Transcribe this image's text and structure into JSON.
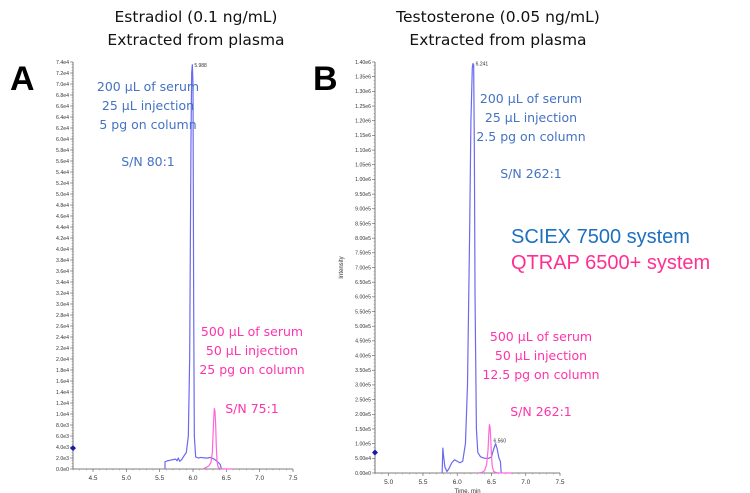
{
  "chart_data": [
    {
      "type": "line",
      "panel": "A",
      "title": [
        "Estradiol (0.1 ng/mL)",
        "Extracted from plasma"
      ],
      "xlabel": "",
      "ylabel": "",
      "xlim": [
        4.2,
        7.5
      ],
      "ylim": [
        0,
        74000
      ],
      "xticks": [
        "4.5",
        "5.0",
        "5.5",
        "6.0",
        "6.5",
        "7.0",
        "7.5"
      ],
      "xtick_values": [
        4.5,
        5.0,
        5.5,
        6.0,
        6.5,
        7.0,
        7.5
      ],
      "yticks": [
        "0.0e0",
        "2.0e3",
        "4.0e3",
        "6.0e3",
        "8.0e3",
        "1.0e4",
        "1.2e4",
        "1.4e4",
        "1.6e4",
        "1.8e4",
        "2.0e4",
        "2.2e4",
        "2.4e4",
        "2.6e4",
        "2.8e4",
        "3.0e4",
        "3.2e4",
        "3.4e4",
        "3.6e4",
        "3.8e4",
        "4.0e4",
        "4.2e4",
        "4.4e4",
        "4.6e4",
        "4.8e4",
        "5.0e4",
        "5.2e4",
        "5.4e4",
        "5.6e4",
        "5.8e4",
        "6.0e4",
        "6.2e4",
        "6.4e4",
        "6.6e4",
        "6.8e4",
        "7.0e4",
        "7.2e4",
        "7.4e4"
      ],
      "ytick_values": [
        0,
        2000,
        4000,
        6000,
        8000,
        10000,
        12000,
        14000,
        16000,
        18000,
        20000,
        22000,
        24000,
        26000,
        28000,
        30000,
        32000,
        34000,
        36000,
        38000,
        40000,
        42000,
        44000,
        46000,
        48000,
        50000,
        52000,
        54000,
        56000,
        58000,
        60000,
        62000,
        64000,
        66000,
        68000,
        70000,
        72000,
        74000
      ],
      "marker_y": 3800,
      "peak_label": {
        "text": "5.988",
        "x": 5.99,
        "y": 73500
      },
      "series": [
        {
          "name": "SCIEX 7500 system",
          "color": "#6a6af0",
          "x": [
            5.58,
            5.58,
            5.62,
            5.66,
            5.7,
            5.74,
            5.76,
            5.78,
            5.8,
            5.83,
            5.86,
            5.9,
            5.93,
            5.95,
            5.97,
            5.98,
            5.99,
            6.0,
            6.01,
            6.02,
            6.04,
            6.08,
            6.12,
            6.18,
            6.22,
            6.26,
            6.3,
            6.34,
            6.38,
            6.41,
            6.42,
            6.42
          ],
          "y": [
            0,
            1300,
            1500,
            1600,
            1700,
            1800,
            1500,
            2000,
            1400,
            1700,
            2300,
            3000,
            6000,
            20000,
            60000,
            72000,
            73500,
            70000,
            30000,
            6000,
            2200,
            2000,
            2100,
            2000,
            2000,
            2100,
            1900,
            1600,
            1200,
            800,
            300,
            0
          ]
        },
        {
          "name": "QTRAP 6500+ system",
          "color": "#ff66dd",
          "x": [
            6.15,
            6.2,
            6.24,
            6.27,
            6.29,
            6.3,
            6.31,
            6.32,
            6.33,
            6.34,
            6.35,
            6.36,
            6.37,
            6.38,
            6.4,
            6.44,
            6.5,
            6.6
          ],
          "y": [
            0,
            300,
            600,
            1200,
            3000,
            6000,
            9000,
            11000,
            10500,
            8000,
            4000,
            1500,
            700,
            300,
            100,
            50,
            0,
            0
          ]
        }
      ],
      "annotations": [
        {
          "color": "#4472c4",
          "lines": [
            "200 µL of serum",
            "25 µL injection",
            "5 pg on column",
            "",
            "S/N 80:1"
          ]
        },
        {
          "color": "#ff33aa",
          "lines": [
            "500 µL of serum",
            "50 µL injection",
            "25 pg on column",
            "",
            "S/N 75:1"
          ]
        }
      ]
    },
    {
      "type": "line",
      "panel": "B",
      "title": [
        "Testosterone (0.05 ng/mL)",
        "Extracted from plasma"
      ],
      "xlabel": "Time, min",
      "ylabel": "Intensity",
      "xlim": [
        4.8,
        7.5
      ],
      "ylim": [
        0,
        1400000
      ],
      "xticks": [
        "5.0",
        "5.5",
        "6.0",
        "6.5",
        "7.0",
        "7.5"
      ],
      "xtick_values": [
        5.0,
        5.5,
        6.0,
        6.5,
        7.0,
        7.5
      ],
      "yticks": [
        "0.00e0",
        "5.00e4",
        "1.00e5",
        "1.50e5",
        "2.00e5",
        "2.50e5",
        "3.00e5",
        "3.50e5",
        "4.00e5",
        "4.50e5",
        "5.00e5",
        "5.50e5",
        "6.00e5",
        "6.50e5",
        "7.00e5",
        "7.50e5",
        "8.00e5",
        "8.50e5",
        "9.00e5",
        "9.50e5",
        "1.00e6",
        "1.05e6",
        "1.10e6",
        "1.15e6",
        "1.20e6",
        "1.25e6",
        "1.30e6",
        "1.35e6",
        "1.40e6"
      ],
      "ytick_values": [
        0,
        50000,
        100000,
        150000,
        200000,
        250000,
        300000,
        350000,
        400000,
        450000,
        500000,
        550000,
        600000,
        650000,
        700000,
        750000,
        800000,
        850000,
        900000,
        950000,
        1000000,
        1050000,
        1100000,
        1150000,
        1200000,
        1250000,
        1300000,
        1350000,
        1400000
      ],
      "marker_y": 70000,
      "peak_labels": [
        {
          "text": "6.241",
          "x": 6.24,
          "y": 1395000
        },
        {
          "text": "6.560",
          "x": 6.5,
          "y": 110000
        }
      ],
      "series": [
        {
          "name": "SCIEX 7500 system",
          "color": "#6a6af0",
          "x": [
            5.78,
            5.79,
            5.8,
            5.82,
            5.85,
            5.88,
            5.92,
            5.96,
            6.0,
            6.04,
            6.08,
            6.12,
            6.15,
            6.18,
            6.2,
            6.22,
            6.23,
            6.24,
            6.25,
            6.26,
            6.28,
            6.3,
            6.34,
            6.4,
            6.46,
            6.5,
            6.53,
            6.56,
            6.58,
            6.61,
            6.63,
            6.64,
            6.64
          ],
          "y": [
            0,
            85000,
            60000,
            20000,
            5000,
            15000,
            35000,
            45000,
            40000,
            35000,
            40000,
            100000,
            300000,
            800000,
            1200000,
            1380000,
            1395000,
            1390000,
            1100000,
            600000,
            150000,
            70000,
            55000,
            50000,
            50000,
            55000,
            80000,
            100000,
            85000,
            50000,
            40000,
            5000,
            0
          ]
        },
        {
          "name": "QTRAP 6500+ system",
          "color": "#ff66dd",
          "x": [
            6.3,
            6.36,
            6.4,
            6.43,
            6.45,
            6.46,
            6.47,
            6.48,
            6.49,
            6.5,
            6.51,
            6.53,
            6.56,
            6.6,
            6.7,
            6.8
          ],
          "y": [
            0,
            2000,
            8000,
            30000,
            80000,
            130000,
            165000,
            155000,
            110000,
            60000,
            25000,
            6000,
            2000,
            500,
            0,
            0
          ]
        }
      ],
      "annotations": [
        {
          "color": "#4472c4",
          "lines": [
            "200 µL of serum",
            "25 µL injection",
            "2.5 pg on column",
            "",
            "S/N 262:1"
          ]
        },
        {
          "color": "#ff33aa",
          "lines": [
            "500 µL of serum",
            "50 µL injection",
            "12.5 pg on column",
            "",
            "S/N 262:1"
          ]
        }
      ]
    }
  ],
  "legend": [
    {
      "label": "SCIEX 7500 system",
      "color": "#1f6fc0"
    },
    {
      "label": "QTRAP 6500+ system",
      "color": "#ff2f92"
    }
  ],
  "colors": {
    "annotation_blue": "#4472c4",
    "annotation_pink": "#ff33aa",
    "marker": "#1a1aa8",
    "axis": "#555555"
  }
}
